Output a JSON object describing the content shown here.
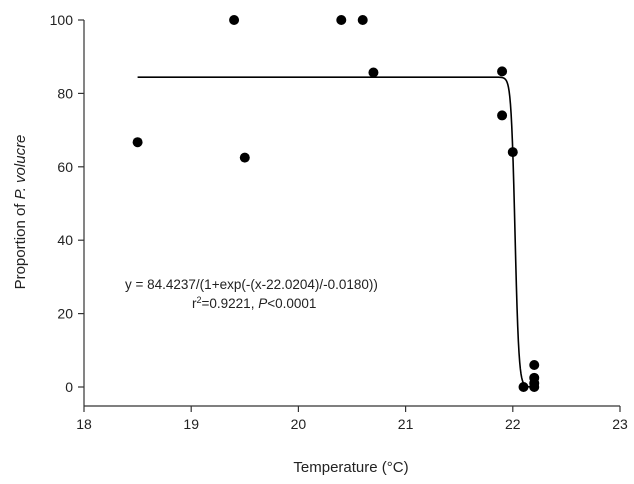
{
  "chart_data": {
    "type": "scatter",
    "xlabel": "Temperature (°C)",
    "ylabel_prefix": "Proportion of ",
    "ylabel_species": "P. volucre",
    "xlim": [
      18,
      23
    ],
    "ylim": [
      0,
      100
    ],
    "xticks": [
      18,
      19,
      20,
      21,
      22,
      23
    ],
    "yticks": [
      0,
      20,
      40,
      60,
      80,
      100
    ],
    "grid": false,
    "legend": false,
    "series": [
      {
        "points": [
          {
            "x": 18.5,
            "y": 66.7
          },
          {
            "x": 19.4,
            "y": 100
          },
          {
            "x": 19.5,
            "y": 62.5
          },
          {
            "x": 20.4,
            "y": 100
          },
          {
            "x": 20.6,
            "y": 100
          },
          {
            "x": 20.7,
            "y": 85.7
          },
          {
            "x": 21.9,
            "y": 86.0
          },
          {
            "x": 21.9,
            "y": 74.0
          },
          {
            "x": 22.0,
            "y": 64.0
          },
          {
            "x": 22.1,
            "y": 0
          },
          {
            "x": 22.2,
            "y": 6.0
          },
          {
            "x": 22.2,
            "y": 2.5
          },
          {
            "x": 22.2,
            "y": 1.0
          },
          {
            "x": 22.2,
            "y": 0
          }
        ]
      }
    ],
    "fit": {
      "equation": "y = 84.4237/(1+exp(-(x-22.0204)/-0.0180))",
      "a": 84.4237,
      "x0": 22.0204,
      "b": -0.018,
      "x_range": [
        18.5,
        22.2
      ]
    },
    "stats": {
      "r_label": "r",
      "r_sup": "2",
      "r_value": "=0.9221, ",
      "p_label": "P",
      "p_value": "<0.0001"
    },
    "colors": {
      "marks": "#000000",
      "axis": "#333333"
    }
  }
}
